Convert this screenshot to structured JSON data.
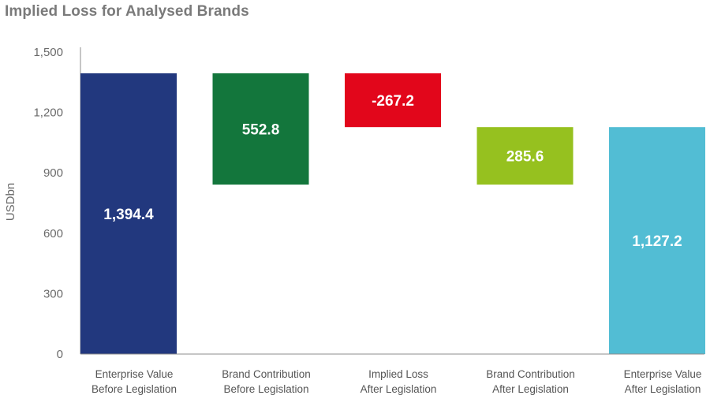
{
  "chart_data": {
    "type": "bar",
    "subtype": "waterfall",
    "title": "Implied Loss for Analysed Brands",
    "ylabel": "USDbn",
    "xlabel": "",
    "ylim": [
      0,
      1500
    ],
    "yticks": [
      0,
      300,
      600,
      900,
      1200,
      1500
    ],
    "ytick_labels": [
      "0",
      "300",
      "600",
      "900",
      "1,200",
      "1,500"
    ],
    "grid": false,
    "categories": [
      [
        "Enterprise Value",
        "Before Legislation"
      ],
      [
        "Brand Contribution",
        "Before Legislation"
      ],
      [
        "Implied Loss",
        "After Legislation"
      ],
      [
        "Brand Contribution",
        "After Legislation"
      ],
      [
        "Enterprise Value",
        "After Legislation"
      ]
    ],
    "bars": [
      {
        "bottom": 0,
        "top": 1394.4,
        "label": "1,394.4",
        "color": "#22387e"
      },
      {
        "bottom": 841.6,
        "top": 1394.4,
        "label": "552.8",
        "color": "#13763c"
      },
      {
        "bottom": 1127.2,
        "top": 1394.4,
        "label": "-267.2",
        "color": "#e2061b"
      },
      {
        "bottom": 841.6,
        "top": 1127.2,
        "label": "285.6",
        "color": "#96c11f"
      },
      {
        "bottom": 0,
        "top": 1127.2,
        "label": "1,127.2",
        "color": "#52bdd4"
      }
    ]
  }
}
